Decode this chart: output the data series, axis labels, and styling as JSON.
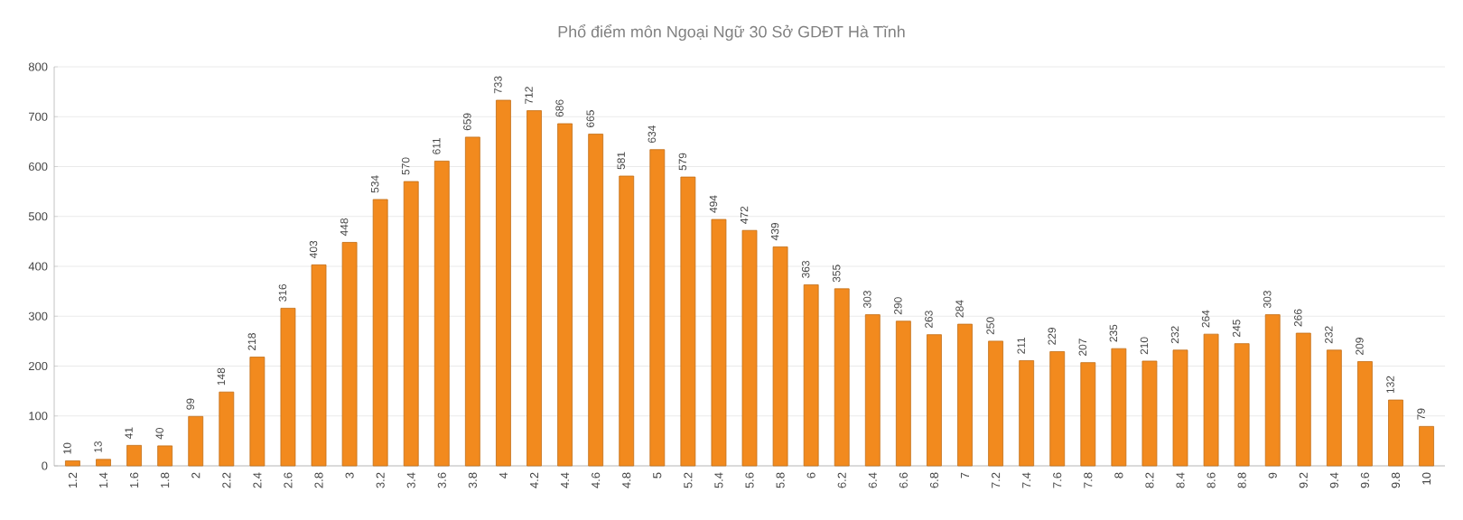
{
  "chart_data": {
    "type": "bar",
    "title": "Phổ điểm môn  Ngoại Ngữ 30 Sở GDĐT Hà Tĩnh",
    "categories": [
      "1.2",
      "1.4",
      "1.6",
      "1.8",
      "2",
      "2.2",
      "2.4",
      "2.6",
      "2.8",
      "3",
      "3.2",
      "3.4",
      "3.6",
      "3.8",
      "4",
      "4.2",
      "4.4",
      "4.6",
      "4.8",
      "5",
      "5.2",
      "5.4",
      "5.6",
      "5.8",
      "6",
      "6.2",
      "6.4",
      "6.6",
      "6.8",
      "7",
      "7.2",
      "7.4",
      "7.6",
      "7.8",
      "8",
      "8.2",
      "8.4",
      "8.6",
      "8.8",
      "9",
      "9.2",
      "9.4",
      "9.6",
      "9.8",
      "10"
    ],
    "values": [
      10,
      13,
      41,
      40,
      99,
      148,
      218,
      316,
      403,
      448,
      534,
      570,
      611,
      659,
      733,
      712,
      686,
      665,
      581,
      634,
      579,
      494,
      472,
      439,
      363,
      355,
      303,
      290,
      263,
      284,
      250,
      211,
      229,
      207,
      235,
      210,
      232,
      264,
      245,
      303,
      266,
      232,
      209,
      132,
      79
    ],
    "color": "#f28a1e",
    "ylim": [
      0,
      800
    ],
    "yticks": [
      0,
      100,
      200,
      300,
      400,
      500,
      600,
      700,
      800
    ],
    "grid": "y",
    "data_labels": true
  }
}
